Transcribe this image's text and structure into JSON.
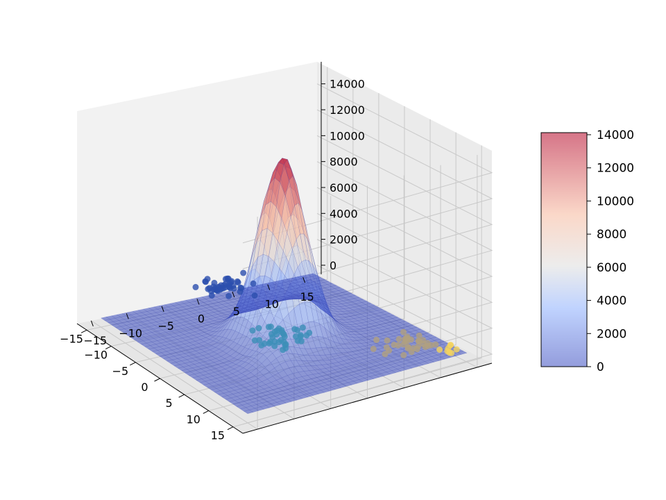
{
  "chart_data": {
    "type": "surface3d",
    "title": "",
    "xlabel": "",
    "ylabel": "",
    "zlabel": "",
    "x_range": [
      -17,
      17
    ],
    "y_range": [
      -17,
      17
    ],
    "z_range": [
      -700,
      15700
    ],
    "x_ticks": [
      "−15",
      "−10",
      "−5",
      "0",
      "5",
      "10",
      "15"
    ],
    "y_ticks": [
      "−15",
      "−10",
      "−5",
      "0",
      "5",
      "10",
      "15"
    ],
    "z_ticks": [
      "0",
      "2000",
      "4000",
      "6000",
      "8000",
      "10000",
      "12000",
      "14000"
    ],
    "grid": true,
    "colormap": "coolwarm",
    "surface_alpha": 0.5,
    "surface_peaks": [
      {
        "x": 0,
        "y": 0,
        "height": 14000
      },
      {
        "x": -5,
        "y": 6,
        "height": 1500
      },
      {
        "x": 6,
        "y": -5,
        "height": 1200
      }
    ],
    "colorbar": {
      "range": [
        0,
        14000
      ],
      "ticks": [
        "0",
        "2000",
        "4000",
        "6000",
        "8000",
        "10000",
        "12000",
        "14000"
      ],
      "placement": "right"
    },
    "scatter_clusters": [
      {
        "x_center": 3,
        "y_center": -15,
        "color": "#2c4fae",
        "count": 45
      },
      {
        "x_center": 0,
        "y_center": 0,
        "color": "#3c8fb8",
        "count": 40
      },
      {
        "x_center": 10,
        "y_center": 10,
        "color": "#b0a080",
        "count": 35
      },
      {
        "x_center": 14,
        "y_center": 14,
        "color": "#f4d35e",
        "count": 8
      }
    ]
  }
}
